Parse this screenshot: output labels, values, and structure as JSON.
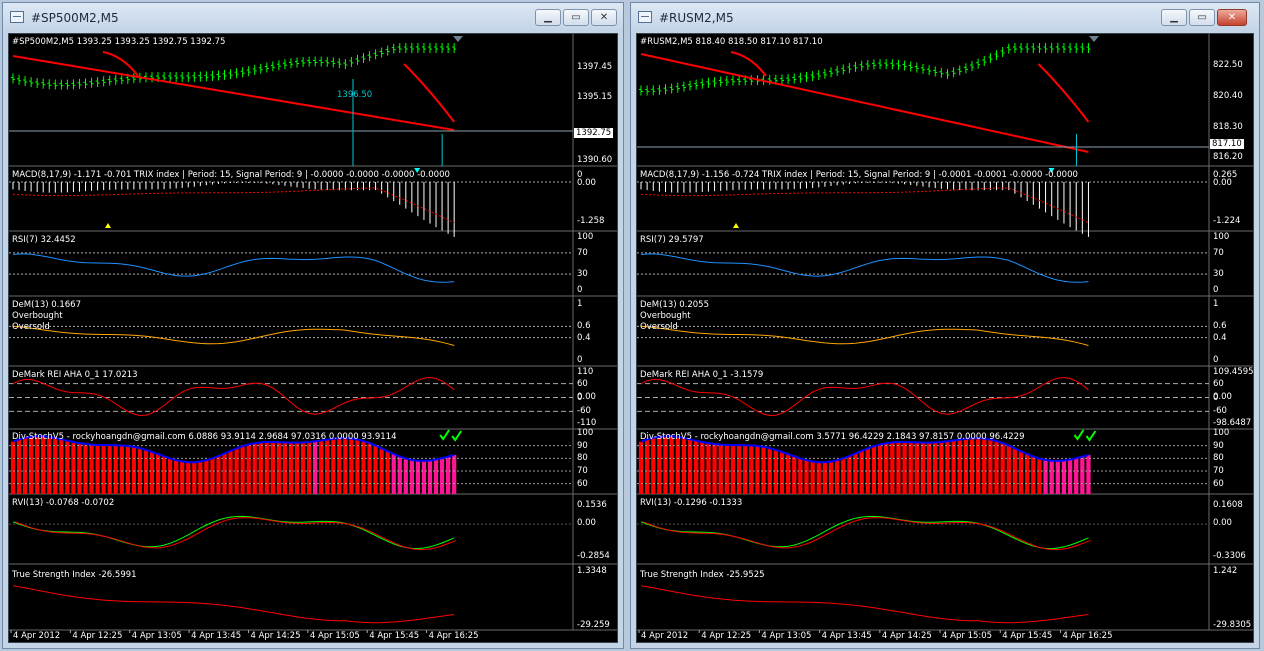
{
  "windows": [
    {
      "title": "#SP500M2,M5",
      "header": "#SP500M2,M5  1393.25 1393.25 1392.75 1392.75",
      "price_scale": [
        "1397.45",
        "1395.15",
        "1392.75",
        "1390.60"
      ],
      "marker_label": "1396.50",
      "macd": {
        "label": "MACD(8,17,9) -1.171 -0.701  TRIX index  | Period: 15, Signal Period: 9  |  -0.0000 -0.0000 -0.0000 -0.0000",
        "scale": [
          "0",
          "0.00",
          "-1.258"
        ]
      },
      "rsi": {
        "label": "RSI(7) 32.4452",
        "scale": [
          "100",
          "70",
          "30",
          "0"
        ]
      },
      "dem": {
        "label": "DeM(13) 0.1667",
        "overbought": "Overbought",
        "oversold": "Oversold",
        "scale": [
          "1",
          "0.6",
          "0.4",
          "0"
        ]
      },
      "rei": {
        "label": "DeMark REI AHA 0_1 17.0213",
        "scale": [
          "110",
          "60",
          "0.00",
          "0",
          "-60",
          "-110"
        ]
      },
      "stoch": {
        "label": "Div-StochV5 - rockyhoangdn@gmail.com 6.0886 93.9114 2.9684 97.0316 0.0000 93.9114",
        "scale": [
          "100",
          "90",
          "80",
          "70",
          "60"
        ]
      },
      "rvi": {
        "label": "RVI(13) -0.0768 -0.0702",
        "scale": [
          "0.1536",
          "0.00",
          "-0.2854"
        ]
      },
      "tsi": {
        "label": "True Strength Index -26.5991",
        "scale": [
          "1.3348",
          "-29.259"
        ]
      },
      "time_axis": [
        "4 Apr 2012",
        "4 Apr 12:25",
        "4 Apr 13:05",
        "4 Apr 13:45",
        "4 Apr 14:25",
        "4 Apr 15:05",
        "4 Apr 15:45",
        "4 Apr 16:25"
      ]
    },
    {
      "title": "#RUSM2,M5",
      "header": "#RUSM2,M5  818.40 818.50 817.10 817.10",
      "price_scale": [
        "822.50",
        "820.40",
        "818.30",
        "817.10",
        "816.20"
      ],
      "marker_label": "",
      "macd": {
        "label": "MACD(8,17,9) -1.156 -0.724  TRIX index  | Period: 15, Signal Period: 9  |  -0.0001 -0.0001 -0.0000 -0.0000",
        "scale": [
          "0.265",
          "0.00",
          "-1.224"
        ]
      },
      "rsi": {
        "label": "RSI(7) 29.5797",
        "scale": [
          "100",
          "70",
          "30",
          "0"
        ]
      },
      "dem": {
        "label": "DeM(13) 0.2055",
        "overbought": "Overbought",
        "oversold": "Oversold",
        "scale": [
          "1",
          "0.6",
          "0.4",
          "0"
        ]
      },
      "rei": {
        "label": "DeMark REI AHA 0_1 -3.1579",
        "scale": [
          "109.4595",
          "60",
          "0.00",
          "0",
          "-60",
          "-98.6487"
        ]
      },
      "stoch": {
        "label": "Div-StochV5 - rockyhoangdn@gmail.com 3.5771 96.4229 2.1843 97.8157 0.0000 96.4229",
        "scale": [
          "100",
          "90",
          "80",
          "70",
          "60"
        ]
      },
      "rvi": {
        "label": "RVI(13) -0.1296 -0.1333",
        "scale": [
          "0.1608",
          "0.00",
          "-0.3306"
        ]
      },
      "tsi": {
        "label": "True Strength Index -25.9525",
        "scale": [
          "1.242",
          "-29.8305"
        ]
      },
      "time_axis": [
        "4 Apr 2012",
        "4 Apr 12:25",
        "4 Apr 13:05",
        "4 Apr 13:45",
        "4 Apr 14:25",
        "4 Apr 15:05",
        "4 Apr 15:45",
        "4 Apr 16:25"
      ]
    }
  ],
  "colors": {
    "price_bars": "#00ff00",
    "trend_line": "#ff0000",
    "rsi_line": "#1e90ff",
    "dem_line": "#ffa500",
    "rei_line": "#ff0000",
    "stoch_bars": "#ff0000",
    "stoch_hot": "#ff1493",
    "stoch_line": "#0000ff",
    "rvi_main": "#00ff00",
    "rvi_signal": "#ff0000",
    "tsi_line": "#ff0000",
    "macd_hist": "#ffffff"
  }
}
